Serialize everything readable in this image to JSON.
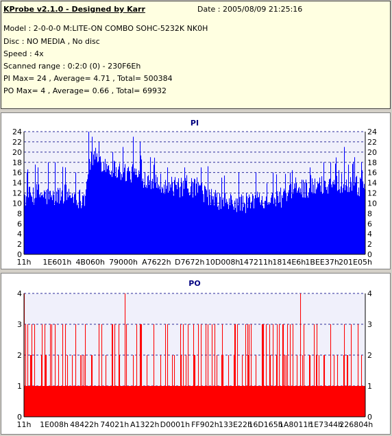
{
  "header": {
    "title": "KProbe v2.1.0 - Designed by Karr",
    "date": "Date : 2005/08/09 21:25:16",
    "lines": [
      "Model : 2-0-0-0 M:LITE-ON COMBO SOHC-5232K NK0H",
      "Disc : NO MEDIA , No disc",
      "Speed : 4x",
      "Scanned range : 0:2:0 (0) - 230F6Eh",
      "PI Max= 24 , Average= 4.71 , Total= 500384",
      "PO Max= 4 , Average= 0.66 , Total= 69932"
    ]
  },
  "colors": {
    "background": "#d4d0c8",
    "info_background": "#ffffe1",
    "plot_background": "#f0f0fb",
    "pi_color": "#0000ff",
    "po_color": "#ff0000",
    "grid_color": "#2a2a9a"
  },
  "chart_data": [
    {
      "type": "bar",
      "title": "PI",
      "ylim": [
        0,
        24
      ],
      "yticks": [
        0,
        2,
        4,
        6,
        8,
        10,
        12,
        14,
        16,
        18,
        20,
        22,
        24
      ],
      "xtick_labels": [
        "11h",
        "1E601h",
        "4B060h",
        "79000h",
        "A7622h",
        "D7672h",
        "10D008h",
        "147211h",
        "1814E6h",
        "1BEE37h",
        "201E05h"
      ],
      "grid": true,
      "profile": [
        [
          0,
          11
        ],
        [
          0.04,
          12
        ],
        [
          0.08,
          11
        ],
        [
          0.12,
          12
        ],
        [
          0.16,
          11
        ],
        [
          0.18,
          11
        ],
        [
          0.19,
          18
        ],
        [
          0.21,
          19
        ],
        [
          0.25,
          17
        ],
        [
          0.3,
          16
        ],
        [
          0.35,
          15
        ],
        [
          0.4,
          14
        ],
        [
          0.45,
          13
        ],
        [
          0.5,
          13
        ],
        [
          0.53,
          12
        ],
        [
          0.54,
          11
        ],
        [
          0.6,
          10
        ],
        [
          0.65,
          10
        ],
        [
          0.7,
          11
        ],
        [
          0.75,
          11
        ],
        [
          0.79,
          12
        ],
        [
          0.8,
          13
        ],
        [
          0.85,
          13
        ],
        [
          0.9,
          14
        ],
        [
          0.95,
          14
        ],
        [
          1,
          13
        ]
      ],
      "spikes": [
        [
          0.04,
          17
        ],
        [
          0.07,
          18
        ],
        [
          0.09,
          18
        ],
        [
          0.12,
          17
        ],
        [
          0.15,
          16
        ],
        [
          0.19,
          24
        ],
        [
          0.2,
          23
        ],
        [
          0.22,
          22
        ],
        [
          0.26,
          20
        ],
        [
          0.29,
          21
        ],
        [
          0.32,
          23
        ],
        [
          0.34,
          22
        ],
        [
          0.37,
          19
        ],
        [
          0.42,
          17
        ],
        [
          0.47,
          17
        ],
        [
          0.52,
          17
        ],
        [
          0.58,
          15
        ],
        [
          0.63,
          16
        ],
        [
          0.68,
          16
        ],
        [
          0.73,
          16
        ],
        [
          0.78,
          16
        ],
        [
          0.84,
          17
        ],
        [
          0.88,
          18
        ],
        [
          0.9,
          18
        ],
        [
          0.94,
          21
        ],
        [
          0.97,
          19
        ],
        [
          0.99,
          18
        ]
      ]
    },
    {
      "type": "bar",
      "title": "PO",
      "ylim": [
        0,
        4
      ],
      "yticks": [
        0,
        1,
        2,
        3,
        4
      ],
      "xtick_labels": [
        "11h",
        "1E008h",
        "48422h",
        "74021h",
        "A1322h",
        "D0001h",
        "FF902h",
        "133E22h",
        "16D165h",
        "1A8011h",
        "1E7344h",
        "226804h"
      ],
      "grid": true,
      "baseline": 1,
      "spikes": [
        [
          0.0,
          4
        ],
        [
          0.01,
          3
        ],
        [
          0.02,
          2
        ],
        [
          0.03,
          3
        ],
        [
          0.05,
          2
        ],
        [
          0.06,
          3
        ],
        [
          0.08,
          2
        ],
        [
          0.09,
          3
        ],
        [
          0.1,
          2
        ],
        [
          0.12,
          3
        ],
        [
          0.14,
          2
        ],
        [
          0.15,
          3
        ],
        [
          0.17,
          2
        ],
        [
          0.18,
          3
        ],
        [
          0.2,
          2
        ],
        [
          0.22,
          3
        ],
        [
          0.24,
          2
        ],
        [
          0.26,
          3
        ],
        [
          0.28,
          2
        ],
        [
          0.3,
          3
        ],
        [
          0.296,
          4
        ],
        [
          0.32,
          2
        ],
        [
          0.34,
          3
        ],
        [
          0.36,
          2
        ],
        [
          0.38,
          3
        ],
        [
          0.4,
          2
        ],
        [
          0.42,
          3
        ],
        [
          0.44,
          2
        ],
        [
          0.46,
          2
        ],
        [
          0.48,
          3
        ],
        [
          0.5,
          2
        ],
        [
          0.52,
          3
        ],
        [
          0.54,
          2
        ],
        [
          0.56,
          3
        ],
        [
          0.58,
          2
        ],
        [
          0.6,
          2
        ],
        [
          0.62,
          3
        ],
        [
          0.64,
          2
        ],
        [
          0.66,
          3
        ],
        [
          0.68,
          2
        ],
        [
          0.7,
          3
        ],
        [
          0.71,
          3
        ],
        [
          0.72,
          3
        ],
        [
          0.73,
          3
        ],
        [
          0.74,
          2
        ],
        [
          0.76,
          2
        ],
        [
          0.78,
          3
        ],
        [
          0.8,
          2
        ],
        [
          0.82,
          3
        ],
        [
          0.81,
          4
        ],
        [
          0.84,
          2
        ],
        [
          0.86,
          3
        ],
        [
          0.88,
          2
        ],
        [
          0.9,
          3
        ],
        [
          0.92,
          2
        ],
        [
          0.94,
          3
        ],
        [
          0.96,
          2
        ],
        [
          0.98,
          3
        ],
        [
          0.99,
          2
        ]
      ]
    }
  ]
}
